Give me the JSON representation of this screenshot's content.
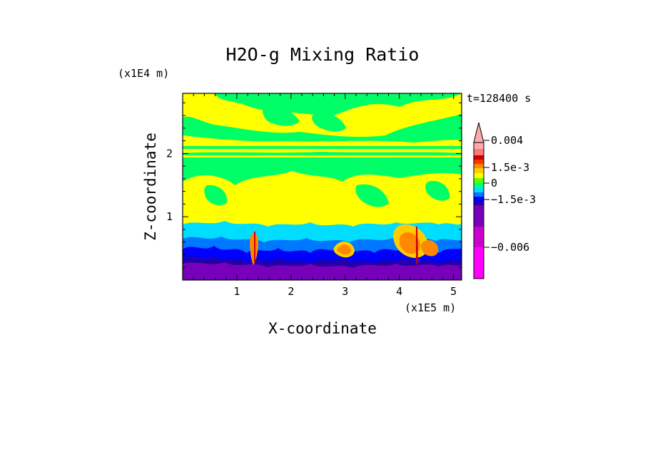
{
  "chart_data": {
    "type": "heatmap",
    "title": "H2O-g Mixing Ratio",
    "xlabel": "X-coordinate",
    "ylabel": "Z-coordinate",
    "x_multiplier": "(x1E5 m)",
    "y_multiplier": "(x1E4 m)",
    "time_label": "t=128400 s",
    "xlim": [
      0,
      5.15
    ],
    "ylim": [
      0,
      2.95
    ],
    "x_ticks": [
      1,
      2,
      3,
      4,
      5
    ],
    "x_tick_labels": [
      "1",
      "2",
      "3",
      "4",
      "5"
    ],
    "y_ticks": [
      1,
      2
    ],
    "y_tick_labels": [
      "1",
      "2"
    ],
    "colorbar": {
      "colors": [
        "#ff00ff",
        "#cc00cc",
        "#7700bb",
        "#2200aa",
        "#0000ff",
        "#0077ff",
        "#00ddff",
        "#00ff88",
        "#55ff00",
        "#ffff00",
        "#ffcc00",
        "#ff8800",
        "#ff3300",
        "#cc0000",
        "#ff7777",
        "#ffaaaa"
      ],
      "tick_labels": [
        "0.004",
        "1.5e-3",
        "0",
        "−1.5e-3",
        "−0.006"
      ],
      "tick_values": [
        0.004,
        0.0015,
        0,
        -0.0015,
        -0.006
      ],
      "extend_top": true
    },
    "regions": [
      {
        "name": "upper-green-band",
        "z_range": [
          2.3,
          2.95
        ],
        "level": 0.0005
      },
      {
        "name": "upper-yellow-band",
        "z_range": [
          2.05,
          2.3
        ],
        "level": 0.001
      },
      {
        "name": "mid-green-band",
        "z_range": [
          1.55,
          2.05
        ],
        "level": 0.0005
      },
      {
        "name": "mid-yellow-band",
        "z_range": [
          0.9,
          1.55
        ],
        "level": 0.001
      },
      {
        "name": "low-cyan-band",
        "z_range": [
          0.5,
          0.9
        ],
        "level": -0.0005
      },
      {
        "name": "boundary-layer-blue",
        "z_range": [
          0.2,
          0.5
        ],
        "level": -0.0015
      },
      {
        "name": "surface-purple",
        "z_range": [
          0.0,
          0.2
        ],
        "level": -0.004
      }
    ],
    "grid": false,
    "legend": "right"
  }
}
